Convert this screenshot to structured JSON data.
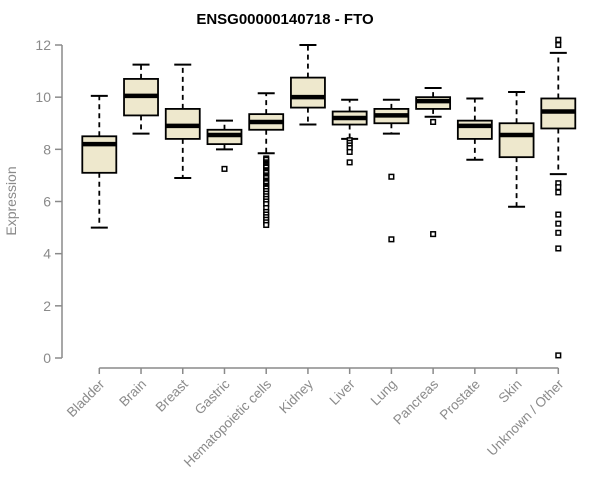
{
  "chart_data": {
    "type": "boxplot",
    "title": "ENSG00000140718 - FTO",
    "ylabel": "Expression",
    "ylim": [
      0,
      12
    ],
    "yticks": [
      0,
      2,
      4,
      6,
      8,
      10,
      12
    ],
    "grid": "off",
    "legend": "none",
    "categories": [
      "Bladder",
      "Brain",
      "Breast",
      "Gastric",
      "Hematopoietic cells",
      "Kidney",
      "Liver",
      "Lung",
      "Pancreas",
      "Prostate",
      "Skin",
      "Unknown / Other"
    ],
    "boxes": [
      {
        "category": "Bladder",
        "whisker_low": 5.0,
        "q1": 7.1,
        "median": 8.2,
        "q3": 8.5,
        "whisker_high": 10.05,
        "outliers": []
      },
      {
        "category": "Brain",
        "whisker_low": 8.6,
        "q1": 9.3,
        "median": 10.05,
        "q3": 10.7,
        "whisker_high": 11.25,
        "outliers": []
      },
      {
        "category": "Breast",
        "whisker_low": 6.9,
        "q1": 8.4,
        "median": 8.9,
        "q3": 9.55,
        "whisker_high": 11.25,
        "outliers": []
      },
      {
        "category": "Gastric",
        "whisker_low": 8.0,
        "q1": 8.2,
        "median": 8.55,
        "q3": 8.75,
        "whisker_high": 9.1,
        "outliers": [
          7.25
        ]
      },
      {
        "category": "Hematopoietic cells",
        "whisker_low": 7.85,
        "q1": 8.75,
        "median": 9.05,
        "q3": 9.35,
        "whisker_high": 10.15,
        "outliers": [
          7.65,
          7.6,
          7.5,
          7.45,
          7.4,
          7.35,
          7.3,
          7.2,
          7.15,
          7.1,
          7.0,
          6.95,
          6.9,
          6.8,
          6.75,
          6.7,
          6.6,
          6.55,
          6.5,
          6.4,
          6.3,
          6.2,
          6.1,
          6.0,
          5.9,
          5.75,
          5.6,
          5.5,
          5.4,
          5.3,
          5.2,
          5.1
        ]
      },
      {
        "category": "Kidney",
        "whisker_low": 8.95,
        "q1": 9.6,
        "median": 10.0,
        "q3": 10.75,
        "whisker_high": 12.0,
        "outliers": []
      },
      {
        "category": "Liver",
        "whisker_low": 8.4,
        "q1": 8.95,
        "median": 9.2,
        "q3": 9.45,
        "whisker_high": 9.9,
        "outliers": [
          8.35,
          8.25,
          8.15,
          8.05,
          7.9,
          7.5
        ]
      },
      {
        "category": "Lung",
        "whisker_low": 8.6,
        "q1": 9.0,
        "median": 9.3,
        "q3": 9.55,
        "whisker_high": 9.9,
        "outliers": [
          6.95,
          4.55
        ]
      },
      {
        "category": "Pancreas",
        "whisker_low": 9.25,
        "q1": 9.55,
        "median": 9.85,
        "q3": 10.0,
        "whisker_high": 10.35,
        "outliers": [
          9.05,
          4.75
        ]
      },
      {
        "category": "Prostate",
        "whisker_low": 7.6,
        "q1": 8.4,
        "median": 8.9,
        "q3": 9.1,
        "whisker_high": 9.95,
        "outliers": []
      },
      {
        "category": "Skin",
        "whisker_low": 5.8,
        "q1": 7.7,
        "median": 8.55,
        "q3": 9.0,
        "whisker_high": 10.2,
        "outliers": []
      },
      {
        "category": "Unknown / Other",
        "whisker_low": 7.05,
        "q1": 8.8,
        "median": 9.45,
        "q3": 9.95,
        "whisker_high": 11.7,
        "outliers": [
          12.2,
          12.0,
          6.7,
          6.55,
          6.35,
          5.5,
          5.15,
          4.8,
          4.2,
          0.1
        ]
      }
    ],
    "style": {
      "box_fill": "#EEE8CD",
      "box_border": "#000000",
      "median_color": "#000000",
      "whisker_color": "#000000",
      "outlier_color": "#000000",
      "axis_color": "#8a8a8a",
      "tick_label_color": "#8a8a8a",
      "title_color": "#000000",
      "background": "#ffffff"
    }
  }
}
